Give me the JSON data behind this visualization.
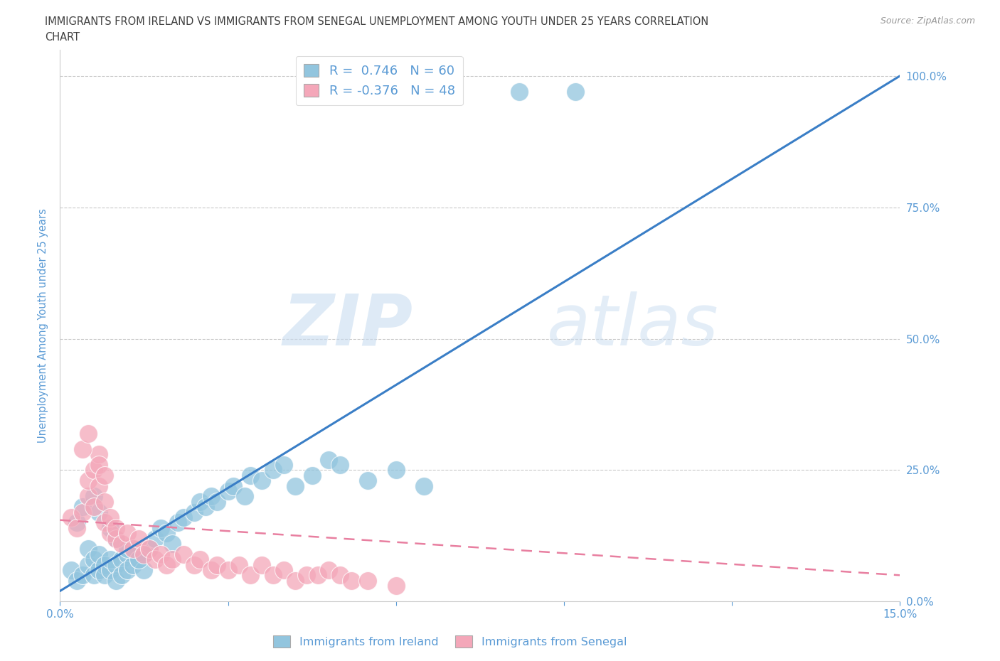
{
  "title_line1": "IMMIGRANTS FROM IRELAND VS IMMIGRANTS FROM SENEGAL UNEMPLOYMENT AMONG YOUTH UNDER 25 YEARS CORRELATION",
  "title_line2": "CHART",
  "source_text": "Source: ZipAtlas.com",
  "ylabel": "Unemployment Among Youth under 25 years",
  "xlim": [
    0.0,
    0.15
  ],
  "ylim": [
    0.0,
    1.05
  ],
  "yticks": [
    0.0,
    0.25,
    0.5,
    0.75,
    1.0
  ],
  "ytick_labels": [
    "0.0%",
    "25.0%",
    "50.0%",
    "75.0%",
    "100.0%"
  ],
  "ireland_R": 0.746,
  "ireland_N": 60,
  "senegal_R": -0.376,
  "senegal_N": 48,
  "ireland_color": "#92C5DE",
  "senegal_color": "#F4A7B9",
  "line_ireland_color": "#3A7EC6",
  "line_senegal_color": "#E87FA0",
  "watermark_zip": "ZIP",
  "watermark_atlas": "atlas",
  "background_color": "#ffffff",
  "grid_color": "#bbbbbb",
  "axis_color": "#5B9BD5",
  "title_color": "#404040",
  "ireland_x": [
    0.002,
    0.003,
    0.004,
    0.005,
    0.005,
    0.006,
    0.006,
    0.007,
    0.007,
    0.008,
    0.008,
    0.009,
    0.009,
    0.01,
    0.01,
    0.011,
    0.011,
    0.012,
    0.012,
    0.013,
    0.013,
    0.014,
    0.015,
    0.015,
    0.016,
    0.017,
    0.018,
    0.019,
    0.02,
    0.021,
    0.022,
    0.024,
    0.025,
    0.026,
    0.027,
    0.028,
    0.03,
    0.031,
    0.033,
    0.034,
    0.036,
    0.038,
    0.04,
    0.042,
    0.045,
    0.048,
    0.05,
    0.055,
    0.06,
    0.065,
    0.003,
    0.004,
    0.006,
    0.007,
    0.009,
    0.01,
    0.012,
    0.014,
    0.082,
    0.092
  ],
  "ireland_y": [
    0.06,
    0.04,
    0.05,
    0.07,
    0.1,
    0.08,
    0.05,
    0.06,
    0.09,
    0.07,
    0.05,
    0.06,
    0.08,
    0.07,
    0.04,
    0.08,
    0.05,
    0.09,
    0.06,
    0.07,
    0.1,
    0.08,
    0.09,
    0.06,
    0.1,
    0.12,
    0.14,
    0.13,
    0.11,
    0.15,
    0.16,
    0.17,
    0.19,
    0.18,
    0.2,
    0.19,
    0.21,
    0.22,
    0.2,
    0.24,
    0.23,
    0.25,
    0.26,
    0.22,
    0.24,
    0.27,
    0.26,
    0.23,
    0.25,
    0.22,
    0.15,
    0.18,
    0.2,
    0.17,
    0.14,
    0.12,
    0.1,
    0.08,
    0.97,
    0.97
  ],
  "senegal_x": [
    0.002,
    0.003,
    0.004,
    0.005,
    0.005,
    0.006,
    0.006,
    0.007,
    0.007,
    0.008,
    0.008,
    0.009,
    0.009,
    0.01,
    0.01,
    0.011,
    0.012,
    0.013,
    0.014,
    0.015,
    0.016,
    0.017,
    0.018,
    0.019,
    0.02,
    0.022,
    0.024,
    0.025,
    0.027,
    0.028,
    0.03,
    0.032,
    0.034,
    0.036,
    0.038,
    0.04,
    0.042,
    0.044,
    0.046,
    0.048,
    0.05,
    0.052,
    0.055,
    0.004,
    0.005,
    0.007,
    0.008,
    0.06
  ],
  "senegal_y": [
    0.16,
    0.14,
    0.17,
    0.2,
    0.23,
    0.18,
    0.25,
    0.22,
    0.28,
    0.15,
    0.19,
    0.13,
    0.16,
    0.12,
    0.14,
    0.11,
    0.13,
    0.1,
    0.12,
    0.09,
    0.1,
    0.08,
    0.09,
    0.07,
    0.08,
    0.09,
    0.07,
    0.08,
    0.06,
    0.07,
    0.06,
    0.07,
    0.05,
    0.07,
    0.05,
    0.06,
    0.04,
    0.05,
    0.05,
    0.06,
    0.05,
    0.04,
    0.04,
    0.29,
    0.32,
    0.26,
    0.24,
    0.03
  ],
  "ireland_line_x0": 0.0,
  "ireland_line_y0": 0.02,
  "ireland_line_x1": 0.15,
  "ireland_line_y1": 1.0,
  "senegal_line_x0": 0.0,
  "senegal_line_y0": 0.155,
  "senegal_line_x1": 0.15,
  "senegal_line_y1": 0.05
}
